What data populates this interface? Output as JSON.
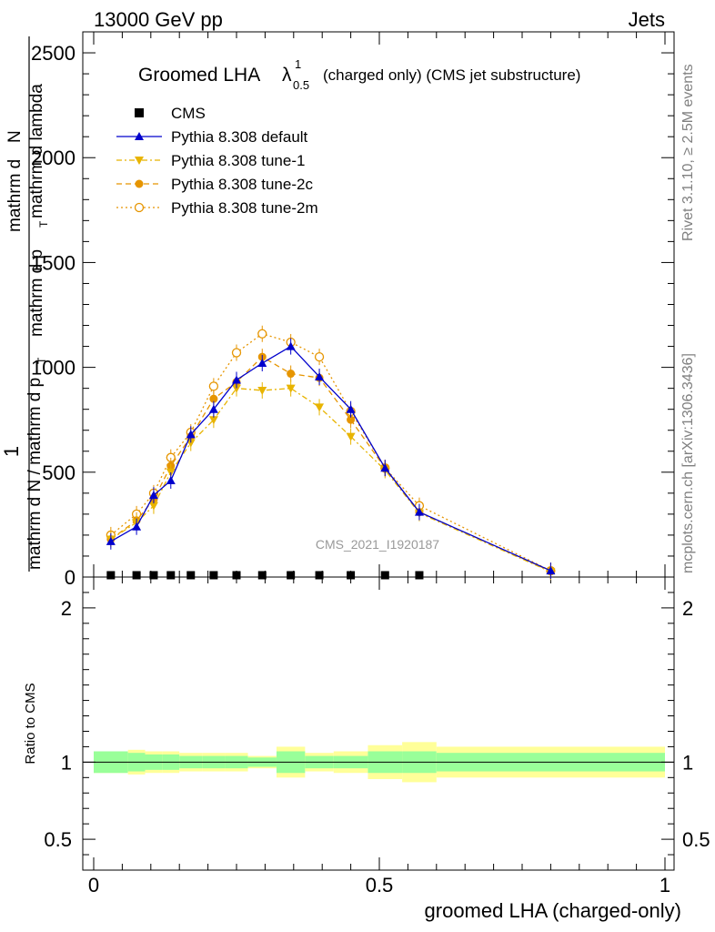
{
  "header": {
    "left": "13000 GeV pp",
    "right": "Jets"
  },
  "side_labels": {
    "rivet": "Rivet 3.1.10, ≥ 2.5M events",
    "mcplots": "mcplots.cern.ch [arXiv:1306.3436]"
  },
  "chart_data": {
    "type": "line",
    "title_main": "Groomed LHA",
    "title_lambda": "λ",
    "title_sup": "1",
    "title_sub": "0.5",
    "title_rest": "(charged only) (CMS jet substructure)",
    "ylabel_numerator_1": "mathrm d",
    "ylabel_numerator_2": "N",
    "ylabel_numerator_3": "mathrm d p",
    "ylabel_numerator_4": "T",
    "ylabel_numerator_5": "mathrm d lambda",
    "ylabel_denominator_1": "mathrm d N / mathrm d p",
    "ylabel_denominator_2": "T",
    "ylabel_one": "1",
    "ratio_ylabel": "Ratio to CMS",
    "xlabel": "groomed LHA (charged-only)",
    "watermark": "CMS_2021_I1920187",
    "xlim": [
      0,
      1
    ],
    "ylim_main": [
      0,
      2600
    ],
    "ylim_ratio": [
      0.3,
      2.2
    ],
    "xticks": [
      "0",
      "0.5",
      "1"
    ],
    "yticks_main": [
      "0",
      "500",
      "1000",
      "1500",
      "2000",
      "2500"
    ],
    "yticks_ratio": [
      "0.5",
      "1",
      "2"
    ],
    "legend_placement": "top-left",
    "cms": {
      "name": "CMS",
      "x": [
        0.03,
        0.075,
        0.105,
        0.135,
        0.17,
        0.21,
        0.25,
        0.295,
        0.345,
        0.395,
        0.45,
        0.51,
        0.57
      ],
      "y": [
        0,
        0,
        0,
        0,
        0,
        0,
        0,
        0,
        0,
        0,
        0,
        0,
        0
      ]
    },
    "bin_edges": [
      0.0,
      0.06,
      0.09,
      0.12,
      0.15,
      0.19,
      0.23,
      0.27,
      0.32,
      0.37,
      0.42,
      0.48,
      0.54,
      0.6,
      1.0
    ],
    "ratio_band_green": [
      0.07,
      0.06,
      0.05,
      0.05,
      0.04,
      0.04,
      0.04,
      0.03,
      0.07,
      0.04,
      0.04,
      0.07,
      0.07,
      0.06
    ],
    "ratio_band_yellow": [
      0.07,
      0.08,
      0.07,
      0.07,
      0.06,
      0.06,
      0.06,
      0.04,
      0.1,
      0.06,
      0.07,
      0.11,
      0.13,
      0.1
    ],
    "series": [
      {
        "name": "Pythia 8.308 default",
        "color": "#0000cc",
        "marker": "triangle-up",
        "x": [
          0.03,
          0.075,
          0.105,
          0.135,
          0.17,
          0.21,
          0.25,
          0.295,
          0.345,
          0.395,
          0.45,
          0.51,
          0.57,
          0.8
        ],
        "y": [
          170,
          240,
          390,
          460,
          680,
          800,
          940,
          1020,
          1100,
          955,
          800,
          520,
          310,
          30
        ]
      },
      {
        "name": "Pythia 8.308 tune-1",
        "color": "#e8b400",
        "marker": "triangle-down",
        "x": [
          0.03,
          0.075,
          0.105,
          0.135,
          0.17,
          0.21,
          0.25,
          0.295,
          0.345,
          0.395,
          0.45,
          0.51,
          0.57,
          0.8
        ],
        "y": [
          180,
          260,
          340,
          500,
          640,
          750,
          900,
          890,
          900,
          810,
          670,
          510,
          305,
          25
        ]
      },
      {
        "name": "Pythia 8.308 tune-2c",
        "color": "#e69500",
        "marker": "circle-filled",
        "x": [
          0.03,
          0.075,
          0.105,
          0.135,
          0.17,
          0.21,
          0.25,
          0.295,
          0.345,
          0.395,
          0.45,
          0.51,
          0.57,
          0.8
        ],
        "y": [
          180,
          270,
          370,
          530,
          670,
          850,
          930,
          1050,
          970,
          950,
          750,
          520,
          310,
          28
        ]
      },
      {
        "name": "Pythia 8.308 tune-2m",
        "color": "#e69500",
        "marker": "circle-open",
        "x": [
          0.03,
          0.075,
          0.105,
          0.135,
          0.17,
          0.21,
          0.25,
          0.295,
          0.345,
          0.395,
          0.45,
          0.51,
          0.57,
          0.8
        ],
        "y": [
          200,
          300,
          400,
          570,
          690,
          910,
          1070,
          1160,
          1120,
          1050,
          790,
          520,
          340,
          30
        ]
      }
    ]
  }
}
